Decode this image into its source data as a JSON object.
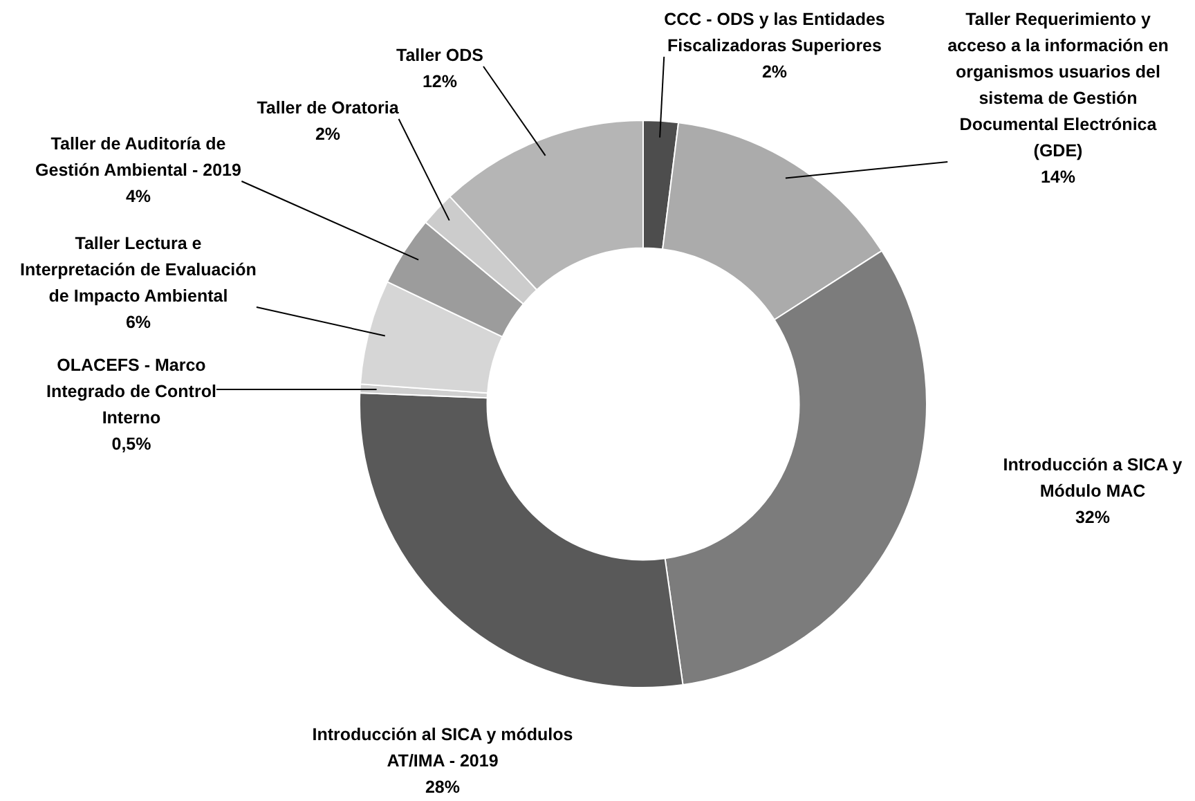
{
  "chart_data": {
    "type": "donut",
    "categories": [
      "CCC - ODS y las Entidades Fiscalizadoras Superiores",
      "Taller Requerimiento y acceso a la información en organismos usuarios del sistema de Gestión Documental Electrónica (GDE)",
      "Introducción a SICA y Módulo MAC",
      "Introducción al SICA y módulos AT/IMA - 2019",
      "OLACEFS - Marco Integrado de Control Interno",
      "Taller Lectura e Interpretación de Evaluación de Impacto Ambiental",
      "Taller de Auditoría de Gestión Ambiental - 2019",
      "Taller de Oratoria",
      "Taller ODS"
    ],
    "values": [
      2,
      14,
      32,
      28,
      0.5,
      6,
      4,
      2,
      12
    ],
    "value_labels": [
      "2%",
      "14%",
      "32%",
      "28%",
      "0,5%",
      "6%",
      "4%",
      "2%",
      "12%"
    ],
    "colors": [
      "#4d4d4d",
      "#ababab",
      "#7c7c7c",
      "#595959",
      "#cfcfcf",
      "#d6d6d6",
      "#9c9c9c",
      "#cccccc",
      "#b5b5b5"
    ]
  }
}
